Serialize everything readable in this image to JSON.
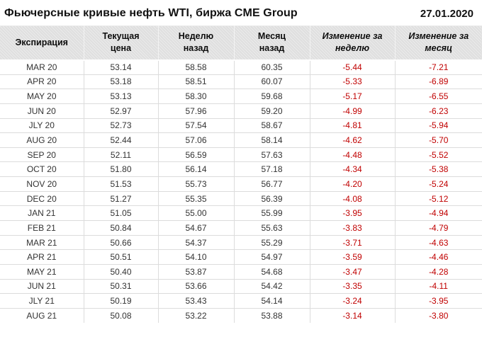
{
  "header": {
    "title": "Фьючерсные кривые нефть WTI, биржа CME Group",
    "date": "27.01.2020"
  },
  "chart_data": {
    "type": "table",
    "title": "Фьючерсные кривые нефть WTI, биржа CME Group",
    "date": "27.01.2020",
    "columns": [
      "Экспирация",
      "Текущая\nцена",
      "Неделю\nназад",
      "Месяц\nназад",
      "Изменение за\nнеделю",
      "Изменение за\nмесяц"
    ],
    "rows": [
      [
        "MAR 20",
        "53.14",
        "58.58",
        "60.35",
        "-5.44",
        "-7.21"
      ],
      [
        "APR 20",
        "53.18",
        "58.51",
        "60.07",
        "-5.33",
        "-6.89"
      ],
      [
        "MAY 20",
        "53.13",
        "58.30",
        "59.68",
        "-5.17",
        "-6.55"
      ],
      [
        "JUN 20",
        "52.97",
        "57.96",
        "59.20",
        "-4.99",
        "-6.23"
      ],
      [
        "JLY 20",
        "52.73",
        "57.54",
        "58.67",
        "-4.81",
        "-5.94"
      ],
      [
        "AUG 20",
        "52.44",
        "57.06",
        "58.14",
        "-4.62",
        "-5.70"
      ],
      [
        "SEP 20",
        "52.11",
        "56.59",
        "57.63",
        "-4.48",
        "-5.52"
      ],
      [
        "OCT 20",
        "51.80",
        "56.14",
        "57.18",
        "-4.34",
        "-5.38"
      ],
      [
        "NOV 20",
        "51.53",
        "55.73",
        "56.77",
        "-4.20",
        "-5.24"
      ],
      [
        "DEC 20",
        "51.27",
        "55.35",
        "56.39",
        "-4.08",
        "-5.12"
      ],
      [
        "JAN 21",
        "51.05",
        "55.00",
        "55.99",
        "-3.95",
        "-4.94"
      ],
      [
        "FEB 21",
        "50.84",
        "54.67",
        "55.63",
        "-3.83",
        "-4.79"
      ],
      [
        "MAR 21",
        "50.66",
        "54.37",
        "55.29",
        "-3.71",
        "-4.63"
      ],
      [
        "APR 21",
        "50.51",
        "54.10",
        "54.97",
        "-3.59",
        "-4.46"
      ],
      [
        "MAY 21",
        "50.40",
        "53.87",
        "54.68",
        "-3.47",
        "-4.28"
      ],
      [
        "JUN 21",
        "50.31",
        "53.66",
        "54.42",
        "-3.35",
        "-4.11"
      ],
      [
        "JLY 21",
        "50.19",
        "53.43",
        "54.14",
        "-3.24",
        "-3.95"
      ],
      [
        "AUG 21",
        "50.08",
        "53.22",
        "53.88",
        "-3.14",
        "-3.80"
      ]
    ]
  },
  "colors": {
    "negative_value": "#c00000",
    "header_background": "#e3e3e3",
    "body_text": "#333333"
  }
}
